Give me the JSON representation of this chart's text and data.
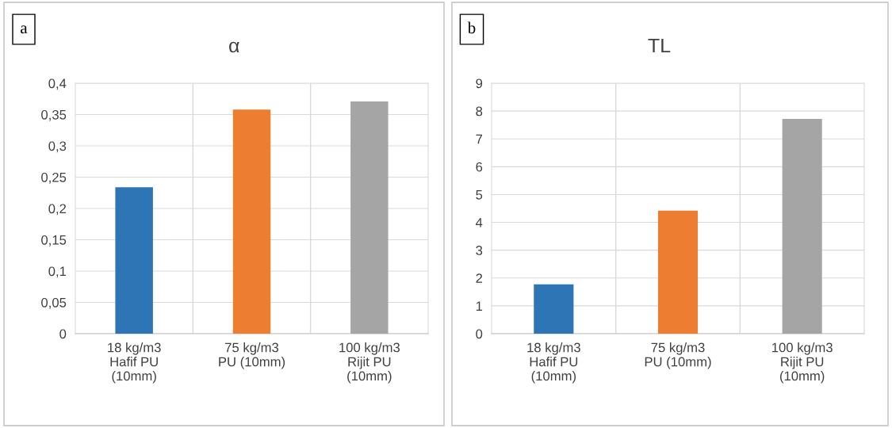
{
  "chart_data": [
    {
      "type": "bar",
      "title": "α",
      "annotations": [
        "a"
      ],
      "categories": [
        "18 kg/m3\nHafif PU\n(10mm)",
        "75 kg/m3\nPU (10mm)",
        "100 kg/m3\nRijit PU\n(10mm)"
      ],
      "values": [
        0.234,
        0.358,
        0.371
      ],
      "colors": [
        "#2e75b6",
        "#ed7d31",
        "#a5a5a5"
      ],
      "ylim": [
        0,
        0.4
      ],
      "yticks": [
        {
          "value": 0,
          "label": "0"
        },
        {
          "value": 0.05,
          "label": "0,05"
        },
        {
          "value": 0.1,
          "label": "0,1"
        },
        {
          "value": 0.15,
          "label": "0,15"
        },
        {
          "value": 0.2,
          "label": "0,2"
        },
        {
          "value": 0.25,
          "label": "0,25"
        },
        {
          "value": 0.3,
          "label": "0,3"
        },
        {
          "value": 0.35,
          "label": "0,35"
        },
        {
          "value": 0.4,
          "label": "0,4"
        }
      ],
      "grid": true
    },
    {
      "type": "bar",
      "title": "TL",
      "annotations": [
        "b"
      ],
      "categories": [
        "18 kg/m3\nHafif PU\n(10mm)",
        "75 kg/m3\nPU (10mm)",
        "100 kg/m3\nRijit PU\n(10mm)"
      ],
      "values": [
        1.77,
        4.42,
        7.72
      ],
      "colors": [
        "#2e75b6",
        "#ed7d31",
        "#a5a5a5"
      ],
      "ylim": [
        0,
        9
      ],
      "yticks": [
        0,
        1,
        2,
        3,
        4,
        5,
        6,
        7,
        8,
        9
      ],
      "grid": true
    }
  ]
}
